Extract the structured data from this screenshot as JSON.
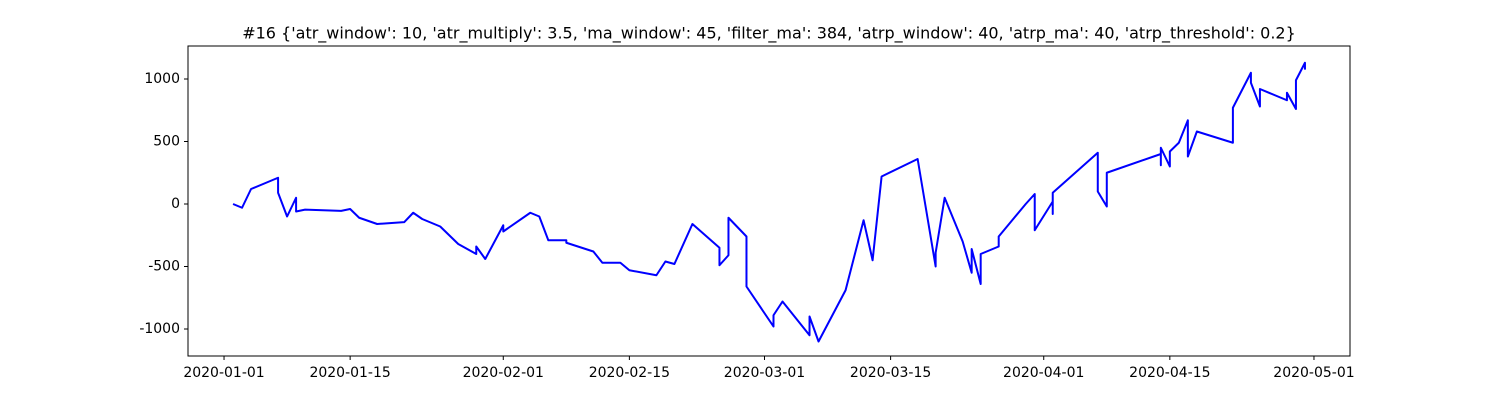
{
  "chart_data": {
    "type": "line",
    "title": "#16 {'atr_window': 10, 'atr_multiply': 3.5, 'ma_window': 45, 'filter_ma': 384, 'atrp_window': 40, 'atrp_ma': 40, 'atrp_threshold': 0.2}",
    "color": "#0000ff",
    "x": [
      "2020-01-02",
      "2020-01-03",
      "2020-01-04",
      "2020-01-07",
      "2020-01-07",
      "2020-01-08",
      "2020-01-09",
      "2020-01-09",
      "2020-01-10",
      "2020-01-14",
      "2020-01-15",
      "2020-01-16",
      "2020-01-18",
      "2020-01-21",
      "2020-01-22",
      "2020-01-23",
      "2020-01-25",
      "2020-01-27",
      "2020-01-29",
      "2020-01-29",
      "2020-01-30",
      "2020-02-01",
      "2020-02-01",
      "2020-02-04",
      "2020-02-05",
      "2020-02-06",
      "2020-02-08",
      "2020-02-08",
      "2020-02-11",
      "2020-02-12",
      "2020-02-14",
      "2020-02-15",
      "2020-02-18",
      "2020-02-19",
      "2020-02-20",
      "2020-02-22",
      "2020-02-25",
      "2020-02-25",
      "2020-02-26",
      "2020-02-26",
      "2020-02-28",
      "2020-02-28",
      "2020-03-02",
      "2020-03-02",
      "2020-03-03",
      "2020-03-06",
      "2020-03-06",
      "2020-03-07",
      "2020-03-10",
      "2020-03-12",
      "2020-03-13",
      "2020-03-14",
      "2020-03-18",
      "2020-03-19",
      "2020-03-20",
      "2020-03-20",
      "2020-03-21",
      "2020-03-23",
      "2020-03-24",
      "2020-03-24",
      "2020-03-25",
      "2020-03-25",
      "2020-03-27",
      "2020-03-27",
      "2020-03-30",
      "2020-03-31",
      "2020-03-31",
      "2020-04-02",
      "2020-04-02",
      "2020-04-02",
      "2020-04-07",
      "2020-04-07",
      "2020-04-07",
      "2020-04-08",
      "2020-04-08",
      "2020-04-14",
      "2020-04-14",
      "2020-04-14",
      "2020-04-15",
      "2020-04-15",
      "2020-04-16",
      "2020-04-17",
      "2020-04-17",
      "2020-04-18",
      "2020-04-22",
      "2020-04-22",
      "2020-04-24",
      "2020-04-24",
      "2020-04-25",
      "2020-04-25",
      "2020-04-28",
      "2020-04-28",
      "2020-04-29",
      "2020-04-29",
      "2020-04-30",
      "2020-04-30"
    ],
    "values": [
      0,
      -30,
      120,
      210,
      90,
      -100,
      50,
      -60,
      -45,
      -55,
      -40,
      -110,
      -160,
      -145,
      -70,
      -120,
      -180,
      -320,
      -400,
      -340,
      -440,
      -170,
      -220,
      -70,
      -100,
      -290,
      -290,
      -310,
      -380,
      -470,
      -470,
      -530,
      -570,
      -460,
      -480,
      -160,
      -350,
      -490,
      -410,
      -110,
      -260,
      -660,
      -980,
      -890,
      -780,
      -1050,
      -900,
      -1100,
      -690,
      -130,
      -450,
      220,
      360,
      -70,
      -500,
      -390,
      50,
      -300,
      -550,
      -360,
      -640,
      -400,
      -340,
      -260,
      0,
      80,
      -210,
      20,
      -80,
      90,
      410,
      200,
      100,
      -20,
      250,
      400,
      310,
      450,
      300,
      420,
      490,
      670,
      380,
      580,
      490,
      770,
      1050,
      970,
      780,
      920,
      830,
      890,
      760,
      990,
      1130,
      1075
    ],
    "xlim": [
      "2019-12-28",
      "2020-05-05"
    ],
    "xticks": [
      "2020-01-01",
      "2020-01-15",
      "2020-02-01",
      "2020-02-15",
      "2020-03-01",
      "2020-03-15",
      "2020-04-01",
      "2020-04-15",
      "2020-05-01"
    ],
    "ylim": [
      -1216,
      1264
    ],
    "yticks": [
      -1000,
      -500,
      0,
      500,
      1000
    ]
  }
}
